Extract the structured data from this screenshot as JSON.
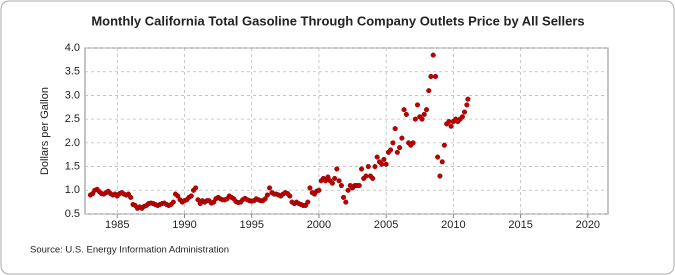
{
  "chart_data": {
    "type": "scatter",
    "title": "Monthly California Total Gasoline Through Company Outlets Price by All Sellers",
    "y_label": "Dollars per Gallon",
    "source": "Source: U.S. Energy Information Administration",
    "color": "#c00000",
    "grid": true,
    "xlim": [
      1982.6,
      2021.5
    ],
    "xticks": [
      1985,
      1990,
      1995,
      2000,
      2005,
      2010,
      2015,
      2020
    ],
    "ylim": [
      0.5,
      4.0
    ],
    "yticks": [
      0.5,
      {
        "value": 1,
        "label": "1.0"
      },
      1.5,
      {
        "value": 2,
        "label": "2.0"
      },
      2.5,
      {
        "value": 3,
        "label": "3.0"
      },
      3.5,
      {
        "value": 4,
        "label": "4.0"
      }
    ],
    "x": [
      1983,
      1983.17,
      1983.33,
      1983.5,
      1983.67,
      1983.83,
      1984,
      1984.17,
      1984.33,
      1984.5,
      1984.67,
      1984.83,
      1985,
      1985.17,
      1985.33,
      1985.5,
      1985.67,
      1985.83,
      1986,
      1986.17,
      1986.33,
      1986.5,
      1986.67,
      1986.83,
      1987,
      1987.17,
      1987.33,
      1987.5,
      1987.67,
      1987.83,
      1988,
      1988.17,
      1988.33,
      1988.5,
      1988.67,
      1988.83,
      1989,
      1989.17,
      1989.33,
      1989.5,
      1989.67,
      1989.83,
      1990,
      1990.17,
      1990.33,
      1990.5,
      1990.67,
      1990.83,
      1991,
      1991.17,
      1991.33,
      1991.5,
      1991.67,
      1991.83,
      1992,
      1992.17,
      1992.33,
      1992.5,
      1992.67,
      1992.83,
      1993,
      1993.17,
      1993.33,
      1993.5,
      1993.67,
      1993.83,
      1994,
      1994.17,
      1994.33,
      1994.5,
      1994.67,
      1994.83,
      1995,
      1995.17,
      1995.33,
      1995.5,
      1995.67,
      1995.83,
      1996,
      1996.17,
      1996.33,
      1996.5,
      1996.67,
      1996.83,
      1997,
      1997.17,
      1997.33,
      1997.5,
      1997.67,
      1997.83,
      1998,
      1998.17,
      1998.33,
      1998.5,
      1998.67,
      1998.83,
      1999,
      1999.17,
      1999.33,
      1999.5,
      1999.67,
      1999.83,
      2000,
      2000.17,
      2000.33,
      2000.5,
      2000.67,
      2000.83,
      2001,
      2001.17,
      2001.33,
      2001.5,
      2001.67,
      2001.83,
      2002,
      2002.17,
      2002.33,
      2002.5,
      2002.67,
      2002.83,
      2003,
      2003.17,
      2003.33,
      2003.5,
      2003.67,
      2003.83,
      2004,
      2004.17,
      2004.33,
      2004.5,
      2004.67,
      2004.83,
      2005,
      2005.17,
      2005.33,
      2005.5,
      2005.67,
      2005.83,
      2006,
      2006.17,
      2006.33,
      2006.5,
      2006.67,
      2006.83,
      2007,
      2007.17,
      2007.33,
      2007.5,
      2007.67,
      2007.83,
      2008,
      2008.17,
      2008.33,
      2008.5,
      2008.67,
      2008.83,
      2009,
      2009.17,
      2009.33,
      2009.5,
      2009.67,
      2009.83,
      2010,
      2010.17,
      2010.33,
      2010.5,
      2010.67,
      2010.83,
      2011,
      2011.08
    ],
    "values": [
      0.9,
      0.93,
      1.0,
      1.02,
      0.97,
      0.93,
      0.92,
      0.95,
      0.98,
      0.93,
      0.9,
      0.92,
      0.88,
      0.93,
      0.95,
      0.92,
      0.9,
      0.92,
      0.85,
      0.7,
      0.68,
      0.62,
      0.65,
      0.62,
      0.66,
      0.68,
      0.72,
      0.73,
      0.72,
      0.7,
      0.68,
      0.7,
      0.72,
      0.73,
      0.7,
      0.68,
      0.7,
      0.75,
      0.92,
      0.88,
      0.8,
      0.75,
      0.78,
      0.8,
      0.85,
      0.88,
      1.0,
      1.05,
      0.8,
      0.72,
      0.78,
      0.75,
      0.78,
      0.78,
      0.73,
      0.75,
      0.82,
      0.85,
      0.82,
      0.8,
      0.8,
      0.82,
      0.88,
      0.85,
      0.82,
      0.76,
      0.74,
      0.75,
      0.8,
      0.83,
      0.8,
      0.78,
      0.77,
      0.78,
      0.82,
      0.8,
      0.78,
      0.78,
      0.82,
      0.9,
      1.05,
      0.95,
      0.92,
      0.92,
      0.9,
      0.88,
      0.92,
      0.95,
      0.93,
      0.88,
      0.75,
      0.72,
      0.75,
      0.72,
      0.7,
      0.68,
      0.68,
      0.75,
      1.05,
      0.95,
      0.92,
      0.98,
      1.0,
      1.2,
      1.25,
      1.2,
      1.28,
      1.2,
      1.15,
      1.25,
      1.45,
      1.2,
      1.1,
      0.85,
      0.75,
      1.0,
      1.1,
      1.05,
      1.1,
      1.1,
      1.1,
      1.45,
      1.25,
      1.3,
      1.5,
      1.3,
      1.25,
      1.5,
      1.7,
      1.6,
      1.55,
      1.65,
      1.55,
      1.8,
      1.85,
      2.0,
      2.3,
      1.8,
      1.9,
      2.1,
      2.7,
      2.6,
      2.0,
      1.95,
      2.0,
      2.5,
      2.8,
      2.55,
      2.5,
      2.6,
      2.7,
      3.1,
      3.4,
      3.85,
      3.4,
      1.7,
      1.3,
      1.6,
      1.95,
      2.4,
      2.45,
      2.35,
      2.45,
      2.5,
      2.45,
      2.5,
      2.55,
      2.65,
      2.8,
      2.92
    ]
  }
}
